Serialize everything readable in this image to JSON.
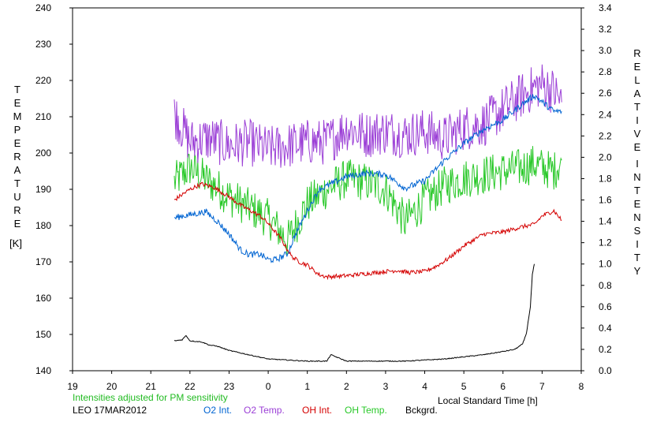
{
  "chart_data": {
    "type": "line",
    "left_axis": {
      "label_letters": [
        "T",
        "E",
        "M",
        "P",
        "E",
        "R",
        "A",
        "T",
        "U",
        "R",
        "E"
      ],
      "unit": "[K]",
      "ticks": [
        "140",
        "150",
        "160",
        "170",
        "180",
        "190",
        "200",
        "210",
        "220",
        "230",
        "240"
      ],
      "range": [
        140,
        240
      ]
    },
    "right_axis": {
      "label_letters_1": [
        "R",
        "E",
        "L",
        "A",
        "T",
        "I",
        "V",
        "E"
      ],
      "label_letters_2": [
        "I",
        "N",
        "T",
        "E",
        "N",
        "S",
        "I",
        "T",
        "Y"
      ],
      "ticks": [
        "0.0",
        "0.2",
        "0.4",
        "0.6",
        "0.8",
        "1.0",
        "1.2",
        "1.4",
        "1.6",
        "1.8",
        "2.0",
        "2.2",
        "2.4",
        "2.6",
        "2.8",
        "3.0",
        "3.2",
        "3.4"
      ],
      "range": [
        0,
        3.4
      ]
    },
    "x_axis": {
      "label": "Local Standard Time [h]",
      "ticks": [
        "19",
        "20",
        "21",
        "22",
        "23",
        "0",
        "1",
        "2",
        "3",
        "4",
        "5",
        "6",
        "7",
        "8"
      ],
      "range": [
        19,
        32
      ]
    },
    "note": "Intensities adjusted for PM sensitivity",
    "station": "LEO 17MAR2012",
    "legend": [
      "O2 Int.",
      "O2 Temp.",
      "OH Int.",
      "OH Temp.",
      "Bckgrd."
    ],
    "colors": {
      "o2_int": "#0064d2",
      "o2_temp": "#9b3fd6",
      "oh_int": "#d40000",
      "oh_temp": "#28c828",
      "bckgrd": "#000000",
      "note": "#22bb22"
    },
    "series": [
      {
        "name": "O2 Temp.",
        "axis": "left",
        "x": [
          21.6,
          22.0,
          22.5,
          23.0,
          23.5,
          24.0,
          24.5,
          25.0,
          25.5,
          26.0,
          26.5,
          27.0,
          27.5,
          28.0,
          28.5,
          29.0,
          29.5,
          30.0,
          30.5,
          30.8,
          31.0,
          31.3,
          31.5
        ],
        "y": [
          211,
          203,
          204,
          202,
          203,
          201,
          202,
          203,
          203,
          207,
          205,
          206,
          205,
          206,
          204,
          207,
          208,
          212,
          216,
          218,
          219,
          217,
          214
        ]
      },
      {
        "name": "O2 Int.",
        "axis": "right",
        "x": [
          21.6,
          21.8,
          22.0,
          22.4,
          22.7,
          23.0,
          23.3,
          23.5,
          23.8,
          24.0,
          24.2,
          24.5,
          24.7,
          25.0,
          25.3,
          25.5,
          26.0,
          26.5,
          27.0,
          27.5,
          28.0,
          28.5,
          29.0,
          29.5,
          30.0,
          30.5,
          30.8,
          31.0,
          31.3,
          31.5
        ],
        "y": [
          1.43,
          1.45,
          1.46,
          1.49,
          1.4,
          1.28,
          1.13,
          1.09,
          1.09,
          1.04,
          1.04,
          1.1,
          1.28,
          1.5,
          1.7,
          1.73,
          1.82,
          1.85,
          1.84,
          1.71,
          1.78,
          1.97,
          2.13,
          2.26,
          2.35,
          2.5,
          2.58,
          2.52,
          2.43,
          2.43
        ]
      },
      {
        "name": "OH Temp.",
        "axis": "left",
        "x": [
          21.6,
          22.0,
          22.5,
          23.0,
          23.5,
          24.0,
          24.5,
          25.0,
          25.5,
          26.0,
          26.5,
          27.0,
          27.5,
          28.0,
          28.5,
          29.0,
          29.5,
          30.0,
          30.5,
          30.8,
          31.0,
          31.3,
          31.5
        ],
        "y": [
          192,
          196,
          192,
          188,
          185,
          182,
          176,
          186,
          190,
          193,
          192,
          190,
          181,
          187,
          191,
          193,
          194,
          195,
          196,
          197,
          196,
          195,
          198
        ]
      },
      {
        "name": "OH Int.",
        "axis": "right",
        "x": [
          21.6,
          21.8,
          22.0,
          22.3,
          22.6,
          23.0,
          23.3,
          23.6,
          23.8,
          24.0,
          24.3,
          24.6,
          24.8,
          25.0,
          25.3,
          25.5,
          26.0,
          26.5,
          27.0,
          27.3,
          27.6,
          28.0,
          28.3,
          28.6,
          29.0,
          29.5,
          30.0,
          30.5,
          30.8,
          31.0,
          31.3,
          31.5
        ],
        "y": [
          1.6,
          1.65,
          1.7,
          1.75,
          1.72,
          1.63,
          1.55,
          1.49,
          1.45,
          1.38,
          1.25,
          1.07,
          1.02,
          0.99,
          0.9,
          0.88,
          0.89,
          0.91,
          0.93,
          0.94,
          0.92,
          0.93,
          0.98,
          1.05,
          1.17,
          1.28,
          1.3,
          1.35,
          1.37,
          1.45,
          1.5,
          1.41
        ]
      },
      {
        "name": "Bckgrd.",
        "axis": "right",
        "x": [
          21.6,
          21.8,
          21.9,
          22.0,
          22.3,
          22.5,
          22.7,
          23.0,
          23.5,
          24.0,
          24.5,
          25.0,
          25.5,
          25.6,
          26.0,
          26.5,
          27.0,
          27.5,
          28.0,
          28.5,
          29.0,
          29.5,
          30.0,
          30.3,
          30.5,
          30.6,
          30.7,
          30.75,
          30.8
        ],
        "y": [
          0.28,
          0.29,
          0.33,
          0.28,
          0.27,
          0.24,
          0.23,
          0.19,
          0.15,
          0.11,
          0.1,
          0.09,
          0.09,
          0.15,
          0.09,
          0.09,
          0.09,
          0.09,
          0.1,
          0.11,
          0.13,
          0.15,
          0.18,
          0.2,
          0.25,
          0.35,
          0.6,
          0.9,
          1.0
        ]
      }
    ]
  }
}
